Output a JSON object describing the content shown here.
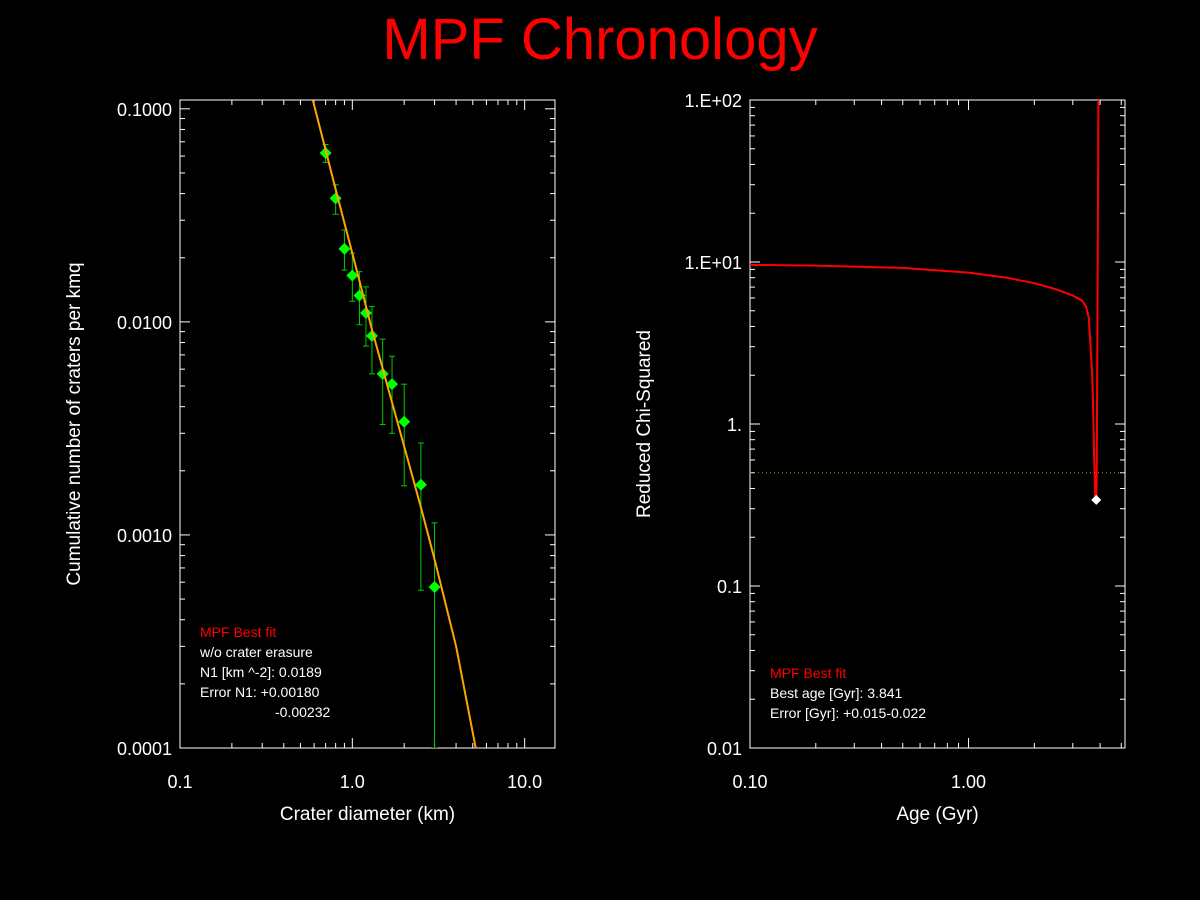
{
  "title": "MPF Chronology",
  "colors": {
    "title": "#ff0000",
    "axis": "#ffffff",
    "fit": "#ffa500",
    "points": "#00ff00",
    "errbar": "#00cc00",
    "chi": "#ff0000",
    "threshold": "#b8860b",
    "best": "#ffffff",
    "legend_head": "#ff0000",
    "legend_text": "#ffffff"
  },
  "chart_data": [
    {
      "type": "scatter",
      "xlabel": "Crater diameter (km)",
      "ylabel": "Cumulative number of craters per kmq",
      "xscale": "log",
      "yscale": "log",
      "xlim": [
        0.1,
        15
      ],
      "ylim": [
        0.0001,
        0.11
      ],
      "xticks": [
        {
          "v": 0.1,
          "label": "0.1"
        },
        {
          "v": 1,
          "label": "1.0"
        },
        {
          "v": 10,
          "label": "10.0"
        }
      ],
      "yticks": [
        {
          "v": 0.0001,
          "label": "0.0001"
        },
        {
          "v": 0.001,
          "label": "0.0010"
        },
        {
          "v": 0.01,
          "label": "0.0100"
        },
        {
          "v": 0.1,
          "label": "0.1000"
        }
      ],
      "series": [
        {
          "kind": "points",
          "points": [
            {
              "x": 0.7,
              "y": 0.062,
              "lo": 0.056,
              "hi": 0.068
            },
            {
              "x": 0.8,
              "y": 0.038,
              "lo": 0.032,
              "hi": 0.044
            },
            {
              "x": 0.9,
              "y": 0.022,
              "lo": 0.0175,
              "hi": 0.027
            },
            {
              "x": 1.0,
              "y": 0.0165,
              "lo": 0.0125,
              "hi": 0.021
            },
            {
              "x": 1.1,
              "y": 0.0133,
              "lo": 0.0097,
              "hi": 0.0172
            },
            {
              "x": 1.2,
              "y": 0.011,
              "lo": 0.0077,
              "hi": 0.0146
            },
            {
              "x": 1.3,
              "y": 0.0086,
              "lo": 0.0057,
              "hi": 0.0118
            },
            {
              "x": 1.5,
              "y": 0.0057,
              "lo": 0.0033,
              "hi": 0.0083
            },
            {
              "x": 1.7,
              "y": 0.0051,
              "lo": 0.003,
              "hi": 0.0069
            },
            {
              "x": 2.0,
              "y": 0.0034,
              "lo": 0.0017,
              "hi": 0.0051
            },
            {
              "x": 2.5,
              "y": 0.00172,
              "lo": 0.00055,
              "hi": 0.0027
            },
            {
              "x": 3.0,
              "y": 0.00057,
              "lo": 0.0001,
              "hi": 0.00114
            }
          ]
        },
        {
          "kind": "fit",
          "line": [
            {
              "x": 0.59,
              "y": 0.11
            },
            {
              "x": 0.8,
              "y": 0.042
            },
            {
              "x": 1.0,
              "y": 0.021
            },
            {
              "x": 1.3,
              "y": 0.0092
            },
            {
              "x": 1.6,
              "y": 0.005
            },
            {
              "x": 2.0,
              "y": 0.0026
            },
            {
              "x": 2.5,
              "y": 0.00135
            },
            {
              "x": 3.0,
              "y": 0.00077
            },
            {
              "x": 4.0,
              "y": 0.0003
            },
            {
              "x": 5.2,
              "y": 0.0001
            }
          ]
        }
      ],
      "legend": {
        "head": "MPF Best fit",
        "lines": [
          "w/o crater erasure",
          "N1 [km ^-2]: 0.0189",
          "Error N1: +0.00180",
          "-0.00232"
        ]
      }
    },
    {
      "type": "line",
      "xlabel": "Age (Gyr)",
      "ylabel": "Reduced Chi-Squared",
      "xscale": "log",
      "yscale": "log",
      "xlim": [
        0.1,
        5.2
      ],
      "ylim": [
        0.01,
        100
      ],
      "xticks": [
        {
          "v": 0.1,
          "label": "0.10"
        },
        {
          "v": 1,
          "label": "1.00"
        }
      ],
      "yticks": [
        {
          "v": 0.01,
          "label": "0.01"
        },
        {
          "v": 0.1,
          "label": "0.1"
        },
        {
          "v": 1,
          "label": "1."
        },
        {
          "v": 10,
          "label": "1.E+01"
        },
        {
          "v": 100,
          "label": "1.E+02"
        }
      ],
      "series": [
        {
          "kind": "curve",
          "line": [
            {
              "x": 0.1,
              "y": 9.6
            },
            {
              "x": 0.2,
              "y": 9.5
            },
            {
              "x": 0.5,
              "y": 9.2
            },
            {
              "x": 1.0,
              "y": 8.6
            },
            {
              "x": 1.5,
              "y": 8.0
            },
            {
              "x": 2.0,
              "y": 7.4
            },
            {
              "x": 2.5,
              "y": 6.8
            },
            {
              "x": 3.0,
              "y": 6.2
            },
            {
              "x": 3.3,
              "y": 5.8
            },
            {
              "x": 3.45,
              "y": 5.3
            },
            {
              "x": 3.55,
              "y": 4.5
            },
            {
              "x": 3.62,
              "y": 3.0
            },
            {
              "x": 3.68,
              "y": 2.0
            },
            {
              "x": 3.72,
              "y": 1.2
            },
            {
              "x": 3.76,
              "y": 0.6
            },
            {
              "x": 3.8,
              "y": 0.36
            },
            {
              "x": 3.841,
              "y": 0.34
            },
            {
              "x": 3.86,
              "y": 0.5
            },
            {
              "x": 3.88,
              "y": 2.0
            },
            {
              "x": 3.9,
              "y": 10
            },
            {
              "x": 3.92,
              "y": 40
            },
            {
              "x": 3.93,
              "y": 100
            }
          ]
        },
        {
          "kind": "hline",
          "y": 0.5
        },
        {
          "kind": "best",
          "x": 3.841,
          "y": 0.34
        }
      ],
      "legend": {
        "head": "MPF Best fit",
        "lines": [
          "Best age [Gyr]: 3.841",
          "Error [Gyr]: +0.015-0.022"
        ]
      }
    }
  ]
}
